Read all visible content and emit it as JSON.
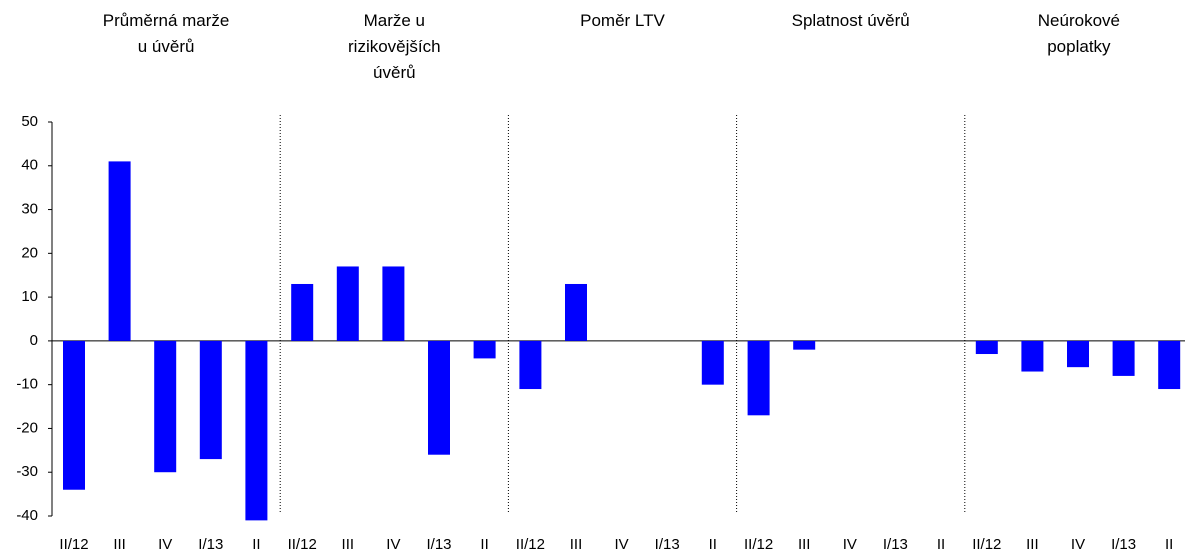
{
  "chart_data": {
    "type": "bar",
    "categories": [
      "II/12",
      "III",
      "IV",
      "I/13",
      "II"
    ],
    "color": "#0000ff",
    "series": [
      {
        "name": "Průměrná marže u úvěrů",
        "values": [
          -34,
          41,
          -30,
          -27,
          -41
        ]
      },
      {
        "name": "Marže u rizikovějších úvěrů",
        "values": [
          13,
          17,
          17,
          -26,
          -4
        ]
      },
      {
        "name": "Poměr LTV",
        "values": [
          -11,
          13,
          0,
          0,
          -10
        ]
      },
      {
        "name": "Splatnost úvěrů",
        "values": [
          -17,
          -2,
          0,
          0,
          0
        ]
      },
      {
        "name": "Neúrokové poplatky",
        "values": [
          -3,
          -7,
          -6,
          -8,
          -11
        ]
      }
    ],
    "ylim": [
      -40,
      50
    ],
    "yticks": [
      -40,
      -30,
      -20,
      -10,
      0,
      10,
      20,
      30,
      40,
      50
    ]
  }
}
